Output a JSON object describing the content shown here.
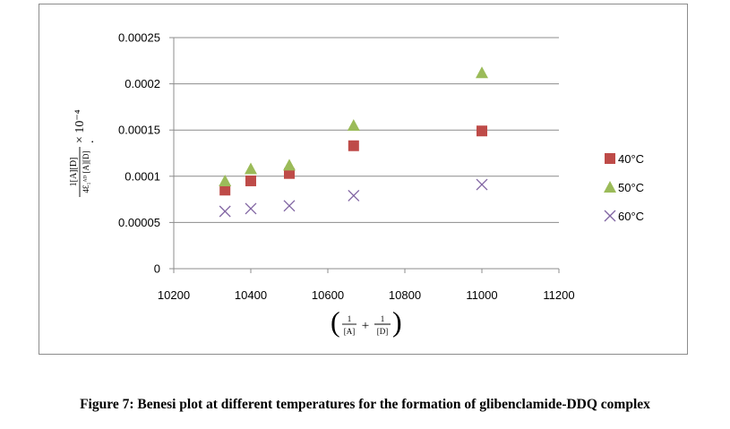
{
  "caption": "Figure 7: Benesi plot at different temperatures for the formation of glibenclamide-DDQ complex",
  "chart_data": {
    "type": "scatter",
    "xlim": [
      10200,
      11200
    ],
    "ylim": [
      0,
      0.00025
    ],
    "x_ticks": [
      10200,
      10400,
      10600,
      10800,
      11000,
      11200
    ],
    "y_ticks": [
      0,
      5e-05,
      0.0001,
      0.00015,
      0.0002,
      0.00025
    ],
    "y_tick_labels": [
      "0",
      "0.00005",
      "0.0001",
      "0.00015",
      "0.0002",
      "0.00025"
    ],
    "x_tick_labels": [
      "10200",
      "10400",
      "10600",
      "10800",
      "11000",
      "11200"
    ],
    "grid": "horizontal",
    "legend_position": "right",
    "xlabel": {
      "num1": "1",
      "den1": "[A]",
      "plus": "+",
      "num2": "1",
      "den2": "[D]"
    },
    "ylabel": {
      "numerator": "1[A][D]",
      "denominator": "4Ɛ₁ᴬᴰ [A][D]",
      "multiplier": "× 10⁻⁴",
      "dot": "."
    },
    "series": [
      {
        "name": "40°C",
        "marker": "square",
        "color": "#be4b48",
        "x": [
          10333,
          10400,
          10500,
          10667,
          11000
        ],
        "y": [
          8.5e-05,
          9.5e-05,
          0.000103,
          0.000133,
          0.000149
        ]
      },
      {
        "name": "50°C",
        "marker": "triangle",
        "color": "#9bbb59",
        "x": [
          10333,
          10400,
          10500,
          10667,
          11000
        ],
        "y": [
          9.5e-05,
          0.000108,
          0.000112,
          0.000155,
          0.000212
        ]
      },
      {
        "name": "60°C",
        "marker": "x",
        "color": "#8064a2",
        "x": [
          10333,
          10400,
          10500,
          10667,
          11000
        ],
        "y": [
          6.2e-05,
          6.5e-05,
          6.8e-05,
          7.9e-05,
          9.1e-05
        ]
      }
    ]
  }
}
